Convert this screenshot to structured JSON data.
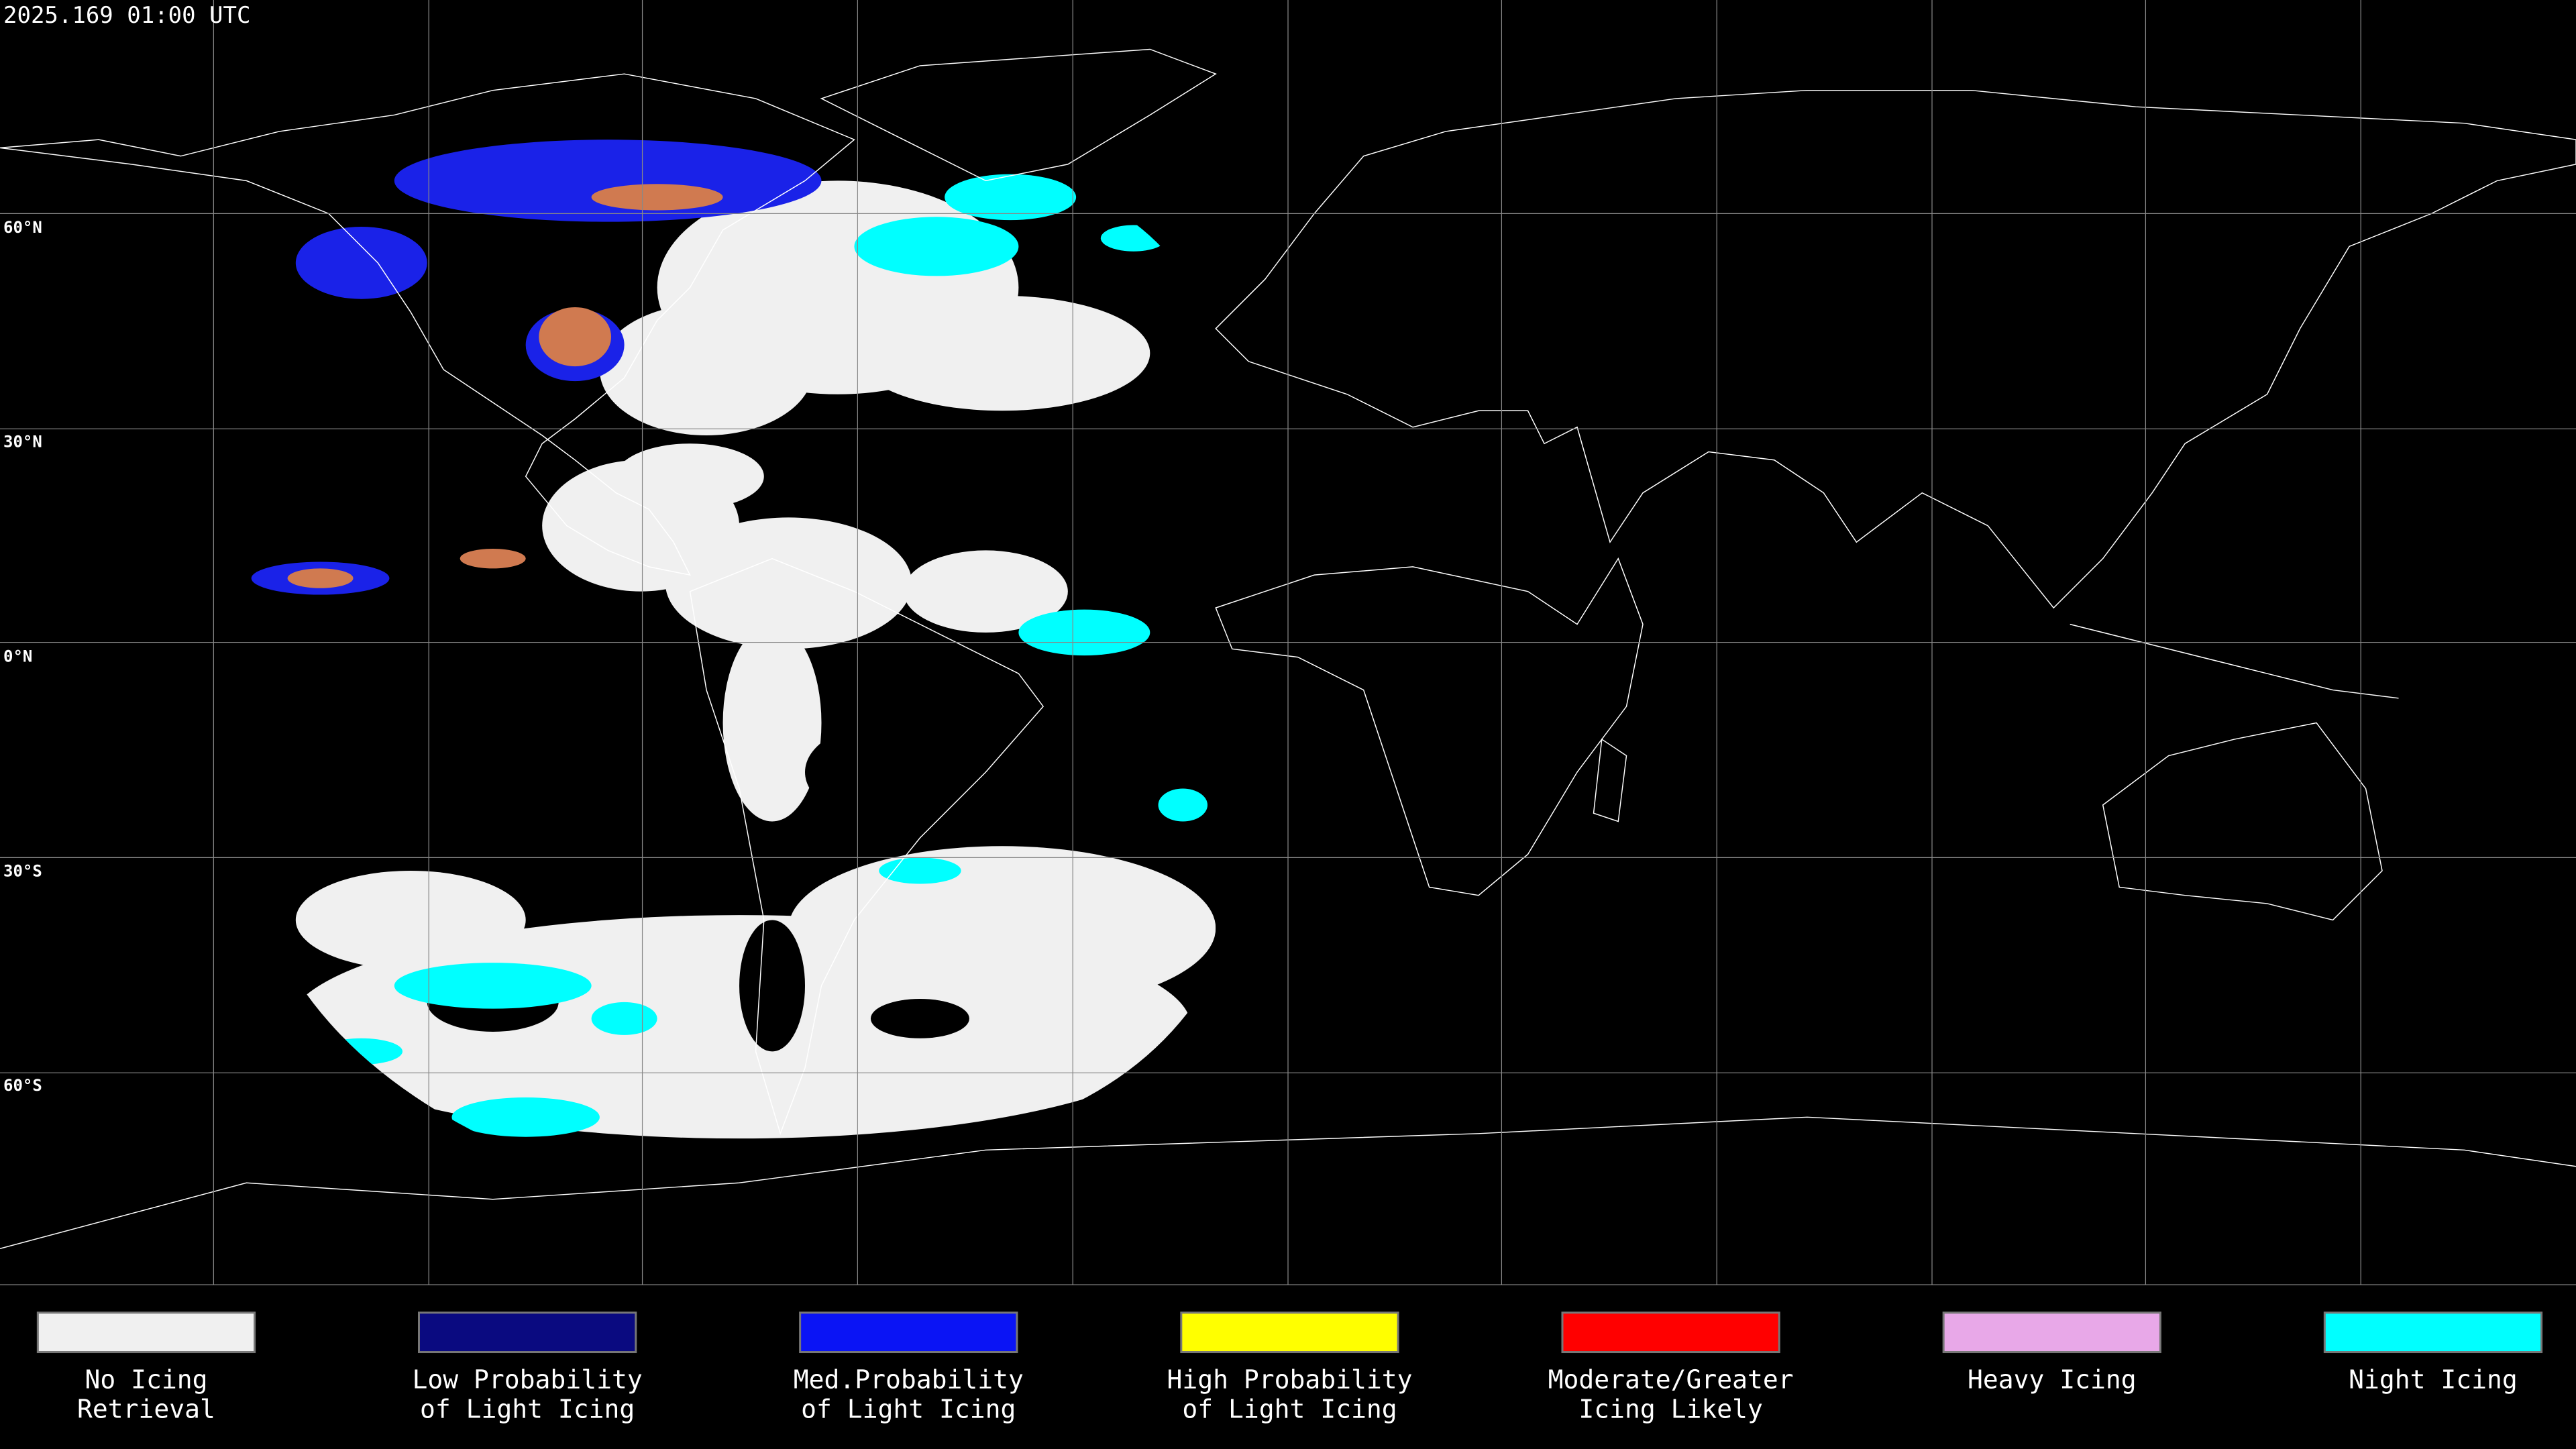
{
  "header": {
    "timestamp": "2025.169 01:00 UTC"
  },
  "map": {
    "latitude_labels": [
      "60°N",
      "30°N",
      "0°N",
      "30°S",
      "60°S"
    ]
  },
  "legend": {
    "items": [
      {
        "lines": [
          "No Icing",
          "Retrieval"
        ],
        "color": "#f0f0f0"
      },
      {
        "lines": [
          "Low Probability",
          "of Light Icing"
        ],
        "color": "#0a0a80"
      },
      {
        "lines": [
          "Med.Probability",
          "of Light Icing"
        ],
        "color": "#0a14f5"
      },
      {
        "lines": [
          "High Probability",
          "of Light Icing"
        ],
        "color": "#ffff00"
      },
      {
        "lines": [
          "Moderate/Greater",
          "Icing Likely"
        ],
        "color": "#ff0000"
      },
      {
        "lines": [
          "Heavy Icing"
        ],
        "color": "#e8a8e8"
      },
      {
        "lines": [
          "Night Icing"
        ],
        "color": "#00ffff"
      }
    ]
  }
}
